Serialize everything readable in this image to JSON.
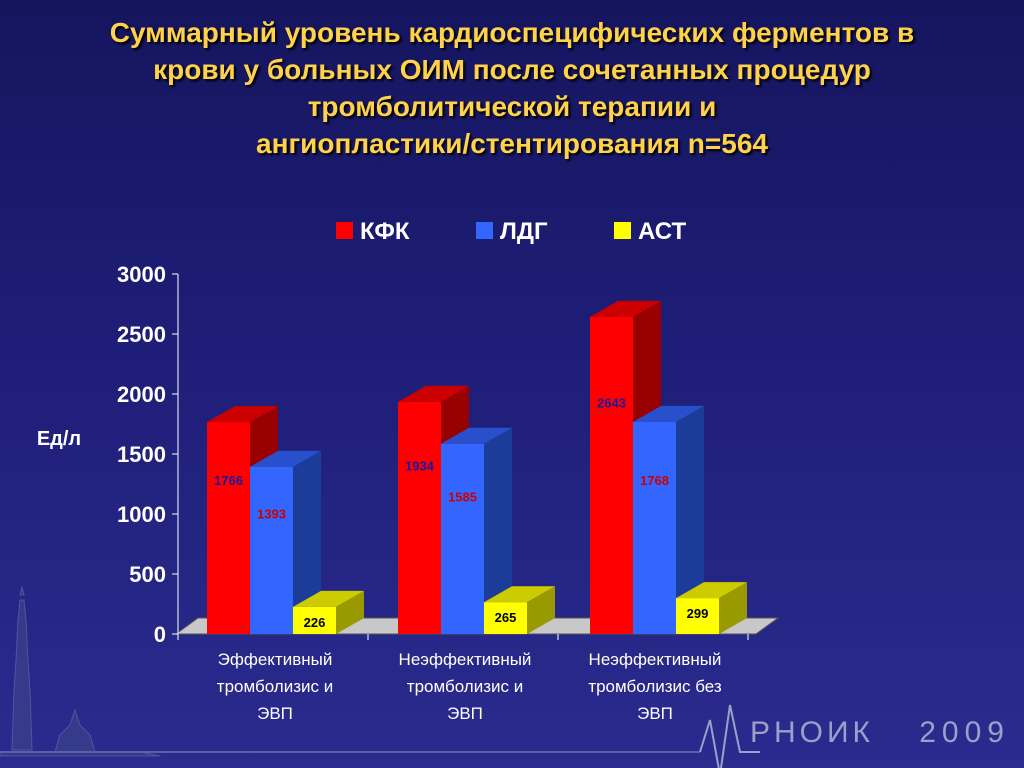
{
  "title_lines": [
    "Суммарный уровень кардиоспецифических ферментов в",
    "крови у больных ОИМ после сочетанных процедур",
    "тромболитической терапии и",
    "ангиопластики/стентирования n=564"
  ],
  "brand": {
    "name": "РНОИК",
    "year": "2009"
  },
  "colors": {
    "kfk": "#ff0000",
    "ldg": "#3366ff",
    "ast": "#ffff00",
    "label_kfk": "#1a1aa0",
    "label_ldg": "#cc0000",
    "label_ast": "#000000"
  },
  "chart_data": {
    "type": "bar",
    "title": "Суммарный уровень кардиоспецифических ферментов в крови у больных ОИМ после сочетанных процедур тромболитической терапии и ангиопластики/стентирования n=564",
    "ylabel": "Ед/л",
    "xlabel": "",
    "ylim": [
      0,
      3000
    ],
    "yticks": [
      0,
      500,
      1000,
      1500,
      2000,
      2500,
      3000
    ],
    "legend_position": "top",
    "categories": [
      [
        "Эффективный",
        "тромболизис и",
        "ЭВП"
      ],
      [
        "Неэффективный",
        "тромболизис и",
        "ЭВП"
      ],
      [
        "Неэффективный",
        "тромболизис без",
        "ЭВП"
      ]
    ],
    "series": [
      {
        "name": "КФК",
        "values": [
          1766,
          1934,
          2643
        ]
      },
      {
        "name": "ЛДГ",
        "values": [
          1393,
          1585,
          1768
        ]
      },
      {
        "name": "АСТ",
        "values": [
          226,
          265,
          299
        ]
      }
    ]
  }
}
